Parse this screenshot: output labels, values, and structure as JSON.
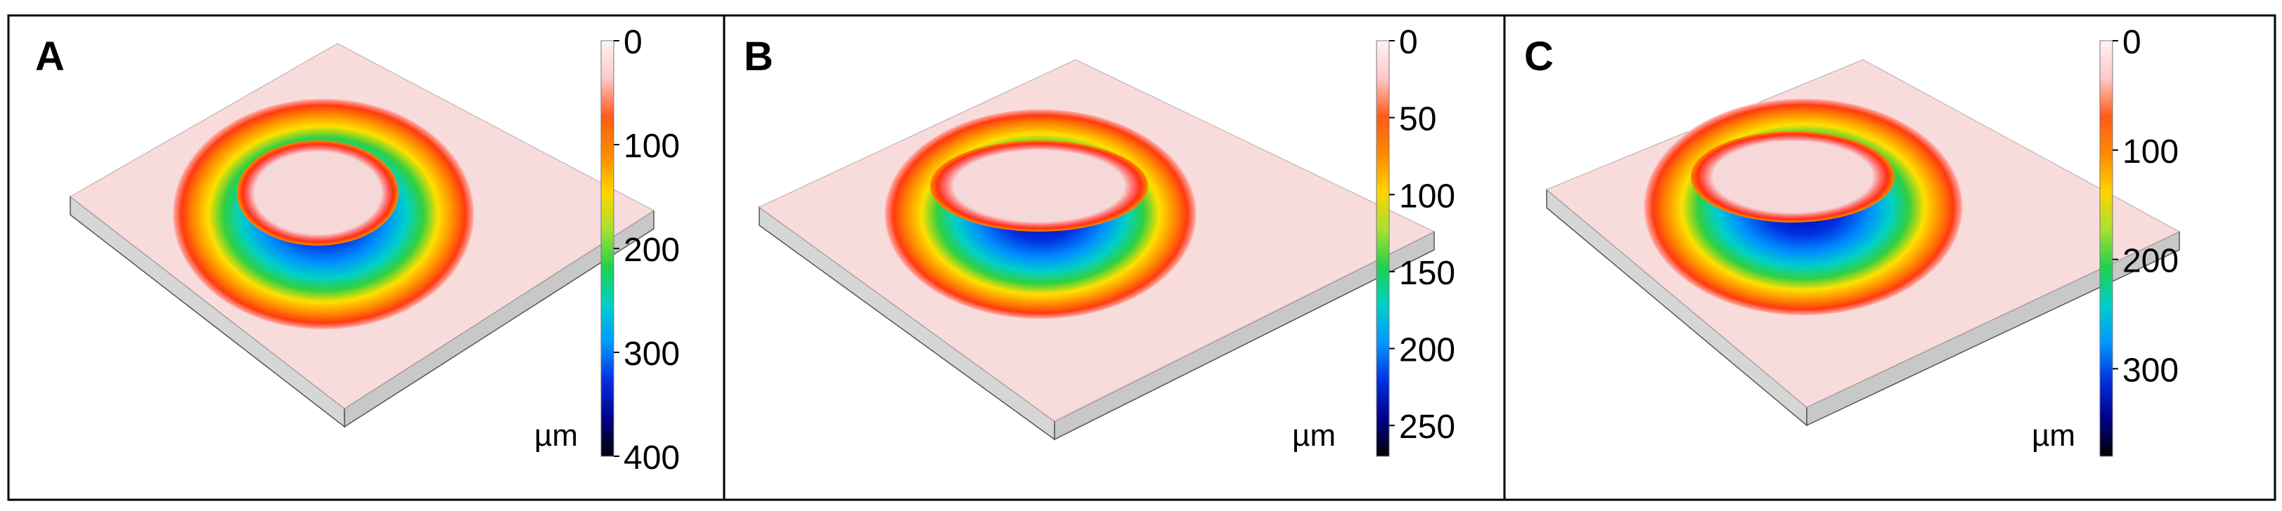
{
  "panels": [
    {
      "label": "A",
      "unit": "µm",
      "ticks": [
        "0",
        "100",
        "200",
        "300",
        "400"
      ],
      "colorbar_max": 400
    },
    {
      "label": "B",
      "unit": "µm",
      "ticks": [
        "0",
        "50",
        "100",
        "150",
        "200",
        "250"
      ],
      "colorbar_max": 270
    },
    {
      "label": "C",
      "unit": "µm",
      "ticks": [
        "0",
        "100",
        "200",
        "300"
      ],
      "colorbar_max": 380
    }
  ],
  "colormap": [
    "#fff2f2",
    "#ffc8c8",
    "#ff5a1a",
    "#ff8a00",
    "#ffd400",
    "#a8e030",
    "#20d050",
    "#00d0c8",
    "#0098ff",
    "#0030e0",
    "#00008a",
    "#000000"
  ],
  "surface_color": "#f8dcdc",
  "side_color": "#c8c8c8"
}
